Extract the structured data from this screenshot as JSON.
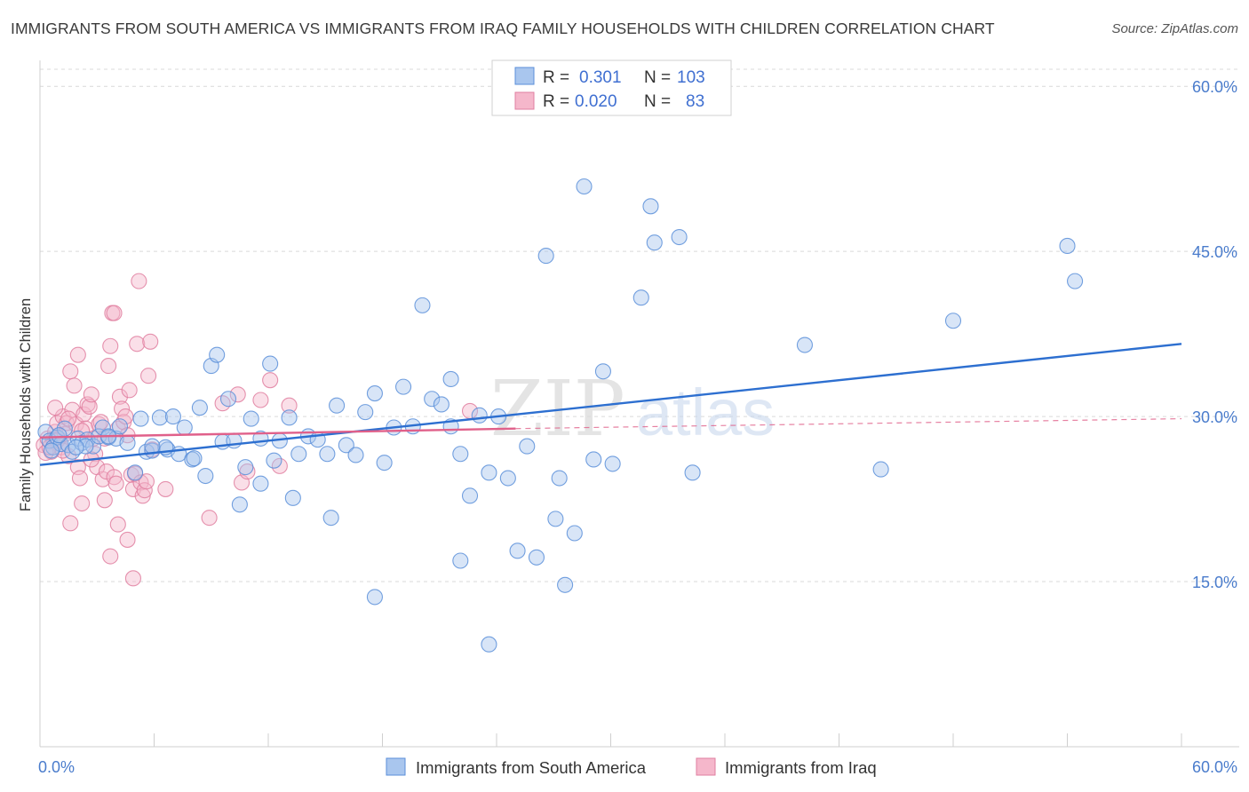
{
  "title": "IMMIGRANTS FROM SOUTH AMERICA VS IMMIGRANTS FROM IRAQ FAMILY HOUSEHOLDS WITH CHILDREN CORRELATION CHART",
  "source": "Source: ZipAtlas.com",
  "watermark": {
    "zip": "ZIP",
    "atlas": "atlas"
  },
  "stats_legend": {
    "r_label": "R =",
    "n_label": "N =",
    "rows": [
      {
        "r": "0.301",
        "n": "103"
      },
      {
        "r": "0.020",
        "n": "83"
      }
    ]
  },
  "bottom_legend": [
    "Immigrants from South America",
    "Immigrants from Iraq"
  ],
  "colors": {
    "blue_fill": "#a9c6ee",
    "blue_stroke": "#5b8fd9",
    "blue_line": "#2d6fd0",
    "pink_fill": "#f5b7cb",
    "pink_stroke": "#e07fa0",
    "pink_line": "#e0608a",
    "grid": "#d9d9d9",
    "tick_label": "#4a7ccc"
  },
  "chart_data": {
    "type": "scatter",
    "title": "IMMIGRANTS FROM SOUTH AMERICA VS IMMIGRANTS FROM IRAQ FAMILY HOUSEHOLDS WITH CHILDREN CORRELATION CHART",
    "xlabel": "",
    "ylabel": "Family Households with Children",
    "xlim": [
      0,
      60
    ],
    "ylim": [
      0,
      63
    ],
    "x_tick_labels": [
      {
        "value": 0,
        "label": "0.0%"
      },
      {
        "value": 60,
        "label": "60.0%"
      }
    ],
    "y_tick_labels": [
      {
        "value": 15,
        "label": "15.0%"
      },
      {
        "value": 30,
        "label": "30.0%"
      },
      {
        "value": 45,
        "label": "45.0%"
      },
      {
        "value": 60,
        "label": "60.0%"
      }
    ],
    "grid": "horizontal dashed",
    "legend_placement": "top-center and bottom",
    "series": [
      {
        "name": "Immigrants from South America",
        "trend": {
          "x0": 0,
          "y0": 25.6,
          "x1": 60,
          "y1": 36.6
        },
        "points": [
          [
            0.3,
            28.6
          ],
          [
            0.5,
            27.8
          ],
          [
            0.7,
            27.2
          ],
          [
            0.9,
            28.1
          ],
          [
            1.1,
            27.5
          ],
          [
            1.3,
            28.9
          ],
          [
            1.5,
            27.4
          ],
          [
            1.7,
            26.8
          ],
          [
            2.0,
            28.0
          ],
          [
            2.2,
            27.6
          ],
          [
            2.5,
            27.9
          ],
          [
            2.8,
            27.3
          ],
          [
            3.1,
            28.2
          ],
          [
            3.3,
            29.0
          ],
          [
            3.6,
            28.1
          ],
          [
            4.0,
            28.0
          ],
          [
            4.6,
            27.6
          ],
          [
            5.0,
            24.9
          ],
          [
            5.3,
            29.8
          ],
          [
            5.6,
            26.8
          ],
          [
            5.9,
            26.9
          ],
          [
            6.3,
            29.9
          ],
          [
            6.7,
            27.0
          ],
          [
            7.0,
            30.0
          ],
          [
            7.3,
            26.6
          ],
          [
            7.6,
            29.0
          ],
          [
            8.0,
            26.1
          ],
          [
            8.4,
            30.8
          ],
          [
            8.7,
            24.6
          ],
          [
            9.0,
            34.6
          ],
          [
            9.3,
            35.6
          ],
          [
            9.6,
            27.7
          ],
          [
            9.9,
            31.6
          ],
          [
            10.2,
            27.8
          ],
          [
            10.5,
            22.0
          ],
          [
            10.8,
            25.4
          ],
          [
            11.1,
            29.8
          ],
          [
            11.6,
            23.9
          ],
          [
            12.1,
            34.8
          ],
          [
            12.3,
            26.0
          ],
          [
            12.6,
            27.8
          ],
          [
            13.1,
            29.9
          ],
          [
            13.6,
            26.6
          ],
          [
            14.1,
            28.2
          ],
          [
            14.6,
            27.9
          ],
          [
            15.1,
            26.6
          ],
          [
            15.6,
            31.0
          ],
          [
            16.1,
            27.4
          ],
          [
            16.6,
            26.5
          ],
          [
            17.1,
            30.4
          ],
          [
            17.6,
            32.1
          ],
          [
            18.1,
            25.8
          ],
          [
            18.6,
            29.0
          ],
          [
            19.1,
            32.7
          ],
          [
            19.6,
            29.1
          ],
          [
            20.1,
            40.1
          ],
          [
            20.6,
            31.6
          ],
          [
            21.1,
            31.1
          ],
          [
            21.6,
            33.4
          ],
          [
            22.1,
            26.6
          ],
          [
            22.6,
            22.8
          ],
          [
            23.1,
            30.1
          ],
          [
            23.6,
            24.9
          ],
          [
            24.1,
            30.0
          ],
          [
            24.6,
            24.4
          ],
          [
            25.1,
            17.8
          ],
          [
            25.6,
            27.3
          ],
          [
            26.1,
            17.2
          ],
          [
            26.6,
            44.6
          ],
          [
            27.1,
            20.7
          ],
          [
            27.6,
            14.7
          ],
          [
            28.1,
            19.4
          ],
          [
            28.6,
            50.9
          ],
          [
            29.1,
            26.1
          ],
          [
            29.6,
            34.1
          ],
          [
            30.1,
            25.7
          ],
          [
            31.6,
            40.8
          ],
          [
            32.1,
            49.1
          ],
          [
            32.3,
            45.8
          ],
          [
            33.6,
            46.3
          ],
          [
            34.3,
            24.9
          ],
          [
            40.2,
            36.5
          ],
          [
            44.2,
            25.2
          ],
          [
            48.0,
            38.7
          ],
          [
            54.0,
            45.5
          ],
          [
            54.4,
            42.3
          ],
          [
            22.1,
            16.9
          ],
          [
            23.6,
            9.3
          ],
          [
            17.6,
            13.6
          ],
          [
            13.3,
            22.6
          ],
          [
            15.3,
            20.8
          ],
          [
            11.6,
            28.0
          ],
          [
            6.6,
            27.2
          ],
          [
            3.6,
            28.2
          ],
          [
            2.4,
            27.3
          ],
          [
            0.6,
            26.9
          ],
          [
            1.0,
            28.3
          ],
          [
            1.9,
            27.2
          ],
          [
            4.2,
            29.1
          ],
          [
            5.9,
            27.3
          ],
          [
            8.1,
            26.2
          ],
          [
            21.6,
            29.1
          ],
          [
            27.3,
            24.4
          ]
        ]
      },
      {
        "name": "Immigrants from Iraq",
        "trend": {
          "x0": 0,
          "y0": 28.1,
          "x1": 25,
          "y1": 28.9
        },
        "trend_ext": {
          "x0": 25,
          "y0": 28.9,
          "x1": 60,
          "y1": 29.8
        },
        "points": [
          [
            0.2,
            27.4
          ],
          [
            0.4,
            28.0
          ],
          [
            0.6,
            26.8
          ],
          [
            0.7,
            27.9
          ],
          [
            0.8,
            28.6
          ],
          [
            0.9,
            29.4
          ],
          [
            1.0,
            28.0
          ],
          [
            1.1,
            27.2
          ],
          [
            1.2,
            30.0
          ],
          [
            1.3,
            28.4
          ],
          [
            1.4,
            29.4
          ],
          [
            1.5,
            26.4
          ],
          [
            1.6,
            34.1
          ],
          [
            1.7,
            30.6
          ],
          [
            1.8,
            32.8
          ],
          [
            1.9,
            29.3
          ],
          [
            2.0,
            25.4
          ],
          [
            2.1,
            24.4
          ],
          [
            2.2,
            22.1
          ],
          [
            2.3,
            30.2
          ],
          [
            2.4,
            28.9
          ],
          [
            2.5,
            31.1
          ],
          [
            2.6,
            30.9
          ],
          [
            2.7,
            32.0
          ],
          [
            2.8,
            28.0
          ],
          [
            2.9,
            26.6
          ],
          [
            3.0,
            25.4
          ],
          [
            3.1,
            29.3
          ],
          [
            3.2,
            29.5
          ],
          [
            3.3,
            24.3
          ],
          [
            3.4,
            22.4
          ],
          [
            3.5,
            25.0
          ],
          [
            3.6,
            34.6
          ],
          [
            3.7,
            36.4
          ],
          [
            3.8,
            39.4
          ],
          [
            3.9,
            24.5
          ],
          [
            4.0,
            23.9
          ],
          [
            4.1,
            28.9
          ],
          [
            4.2,
            31.8
          ],
          [
            4.3,
            30.7
          ],
          [
            4.4,
            29.5
          ],
          [
            4.5,
            30.0
          ],
          [
            4.6,
            28.3
          ],
          [
            4.7,
            32.4
          ],
          [
            4.8,
            24.7
          ],
          [
            4.9,
            23.4
          ],
          [
            5.0,
            24.8
          ],
          [
            5.1,
            36.6
          ],
          [
            5.2,
            42.3
          ],
          [
            5.3,
            24.0
          ],
          [
            5.4,
            22.8
          ],
          [
            5.5,
            23.3
          ],
          [
            5.6,
            24.1
          ],
          [
            5.7,
            33.7
          ],
          [
            5.8,
            36.8
          ],
          [
            5.9,
            27.0
          ],
          [
            10.4,
            32.0
          ],
          [
            10.6,
            24.0
          ],
          [
            10.9,
            25.0
          ],
          [
            11.6,
            31.5
          ],
          [
            12.1,
            33.3
          ],
          [
            12.6,
            25.5
          ],
          [
            13.1,
            31.0
          ],
          [
            9.6,
            31.2
          ],
          [
            8.9,
            20.8
          ],
          [
            6.6,
            23.4
          ],
          [
            4.1,
            20.2
          ],
          [
            3.7,
            17.3
          ],
          [
            4.6,
            18.8
          ],
          [
            4.9,
            15.3
          ],
          [
            3.9,
            39.4
          ],
          [
            1.6,
            20.3
          ],
          [
            2.0,
            35.6
          ],
          [
            0.3,
            26.7
          ],
          [
            0.5,
            27.2
          ],
          [
            0.9,
            27.8
          ],
          [
            1.2,
            26.9
          ],
          [
            1.5,
            29.8
          ],
          [
            2.2,
            28.7
          ],
          [
            2.7,
            26.1
          ],
          [
            3.4,
            28.0
          ],
          [
            22.6,
            30.5
          ],
          [
            0.8,
            30.8
          ]
        ]
      }
    ]
  }
}
